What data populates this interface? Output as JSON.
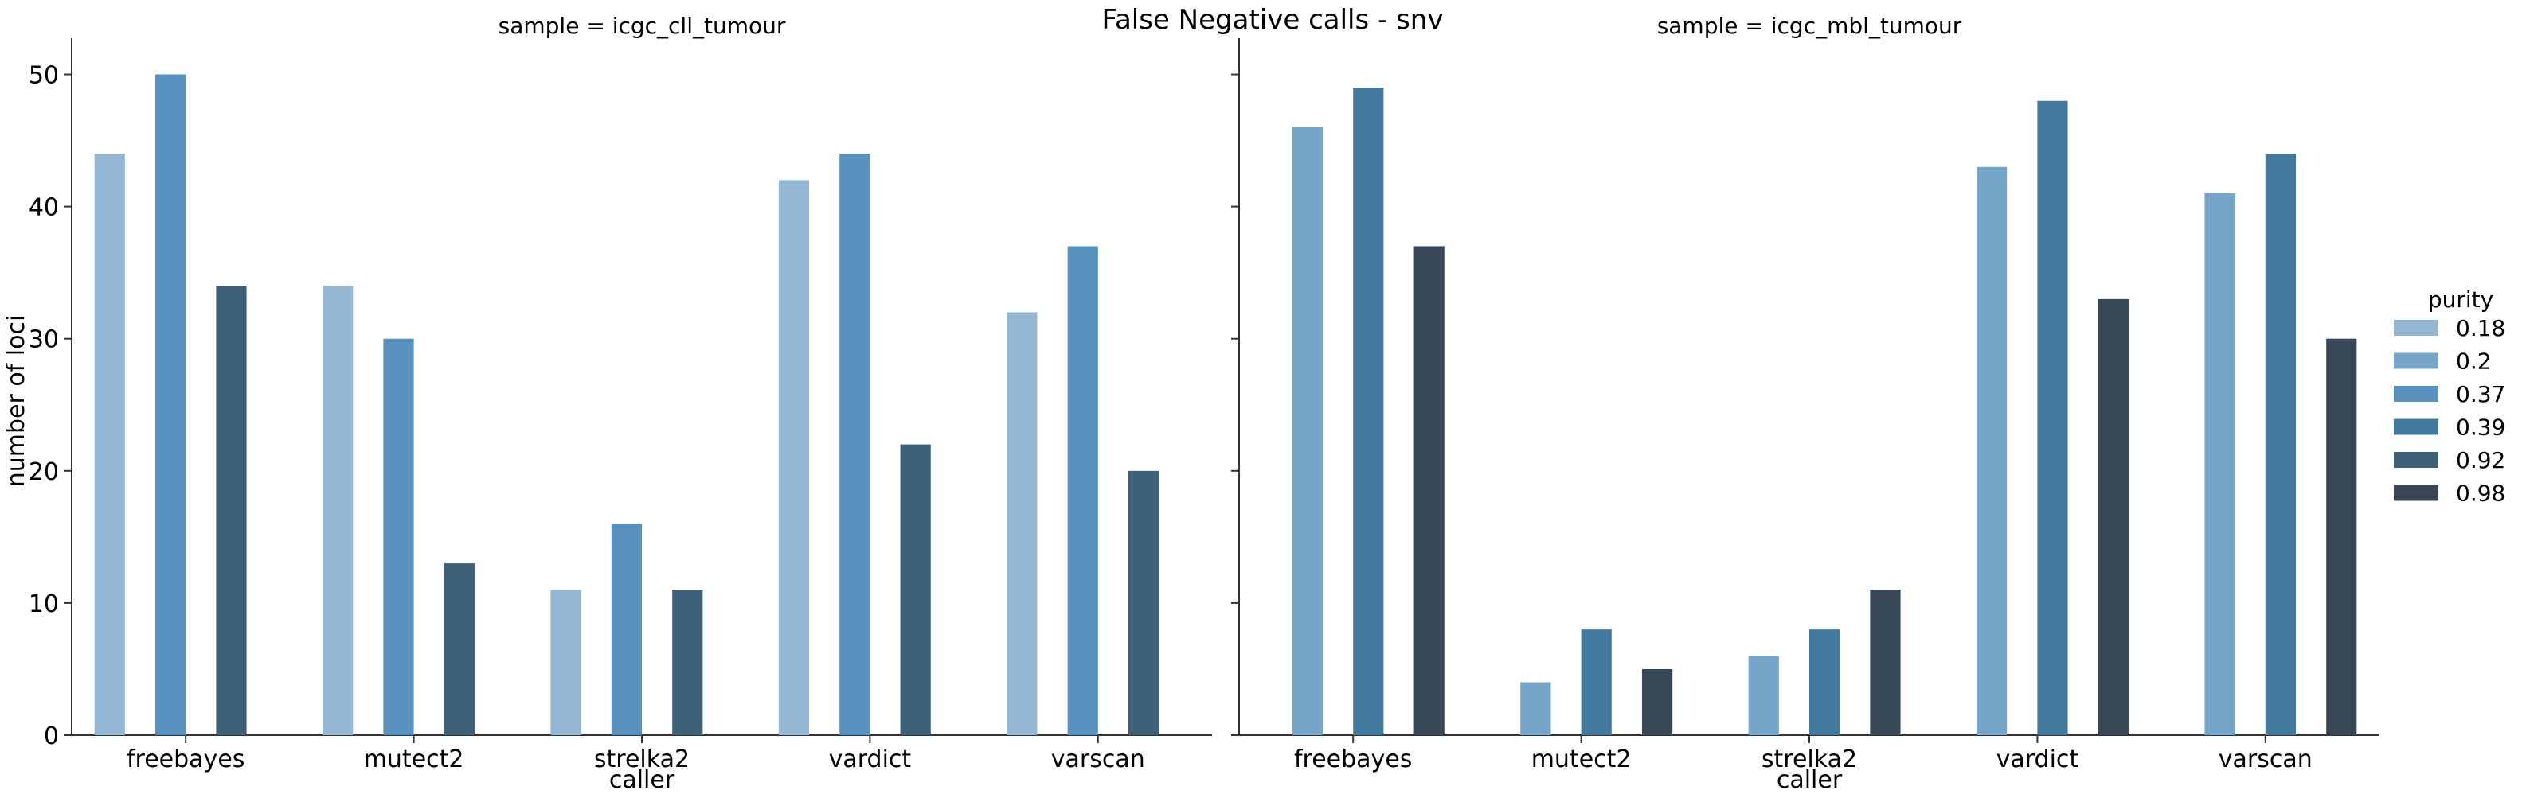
{
  "chart_data": {
    "type": "bar",
    "title": "False Negative calls - snv",
    "xlabel": "caller",
    "ylabel": "number of loci",
    "ylim": [
      0,
      52.5
    ],
    "yticks": [
      0,
      10,
      20,
      30,
      40,
      50
    ],
    "grid": false,
    "legend": {
      "title": "purity",
      "placement": "right"
    },
    "categories": [
      "freebayes",
      "mutect2",
      "strelka2",
      "vardict",
      "varscan"
    ],
    "hue_levels": [
      {
        "name": "0.18",
        "color": "#94b8d4"
      },
      {
        "name": "0.2",
        "color": "#75a5c8"
      },
      {
        "name": "0.37",
        "color": "#5891bd"
      },
      {
        "name": "0.39",
        "color": "#44799f"
      },
      {
        "name": "0.92",
        "color": "#3d6079"
      },
      {
        "name": "0.98",
        "color": "#374755"
      }
    ],
    "panels": [
      {
        "title": "sample = icgc_cll_tumour",
        "series": [
          {
            "name": "0.18",
            "values": [
              44,
              34,
              11,
              42,
              32
            ]
          },
          {
            "name": "0.37",
            "values": [
              50,
              30,
              16,
              44,
              37
            ]
          },
          {
            "name": "0.92",
            "values": [
              34,
              13,
              11,
              22,
              20
            ]
          }
        ]
      },
      {
        "title": "sample = icgc_mbl_tumour",
        "series": [
          {
            "name": "0.2",
            "values": [
              46,
              4,
              6,
              43,
              41
            ]
          },
          {
            "name": "0.39",
            "values": [
              49,
              8,
              8,
              48,
              44
            ]
          },
          {
            "name": "0.98",
            "values": [
              37,
              5,
              11,
              33,
              30
            ]
          }
        ]
      }
    ]
  }
}
